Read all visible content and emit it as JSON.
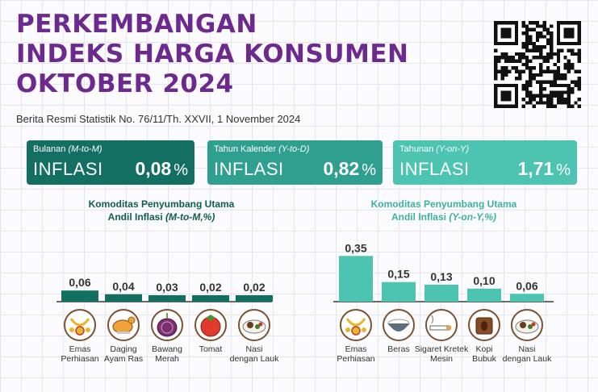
{
  "header": {
    "title_lines": [
      "PERKEMBANGAN",
      "INDEKS HARGA KONSUMEN",
      "OKTOBER 2024"
    ],
    "subtitle": "Berita Resmi Statistik No. 76/11/Th. XXVII, 1 November 2024"
  },
  "cards": [
    {
      "period_prefix": "Bulanan ",
      "period_italic": "(M-to-M)",
      "label": "INFLASI",
      "value": "0,08",
      "unit": "%"
    },
    {
      "period_prefix": "Tahun Kalender ",
      "period_italic": "(Y-to-D)",
      "label": "INFLASI",
      "value": "0,82",
      "unit": "%"
    },
    {
      "period_prefix": "Tahunan ",
      "period_italic": "(Y-on-Y)",
      "label": "INFLASI",
      "value": "1,71",
      "unit": "%"
    }
  ],
  "colors": {
    "purple": "#6c2a8e",
    "dark_teal": "#136f61",
    "mid_teal": "#2fa08f",
    "light_teal": "#4cc4b1"
  },
  "chart_data": [
    {
      "type": "bar",
      "title_line1": "Komoditas Penyumbang Utama",
      "title_line2_prefix": "Andil Inflasi ",
      "title_line2_italic": "(M-to-M,%)",
      "categories": [
        "Emas Perhiasan",
        "Daging Ayam Ras",
        "Bawang Merah",
        "Tomat",
        "Nasi dengan Lauk"
      ],
      "label_lines": [
        [
          "Emas",
          "Perhiasan"
        ],
        [
          "Daging",
          "Ayam Ras"
        ],
        [
          "Bawang",
          "Merah"
        ],
        [
          "Tomat"
        ],
        [
          "Nasi",
          "dengan Lauk"
        ]
      ],
      "icons": [
        "gold-jewelry-icon",
        "chicken-icon",
        "shallot-icon",
        "tomato-icon",
        "rice-dish-icon"
      ],
      "values": [
        0.06,
        0.04,
        0.03,
        0.02,
        0.02
      ],
      "value_labels": [
        "0,06",
        "0,04",
        "0,03",
        "0,02",
        "0,02"
      ],
      "color": "#136f61"
    },
    {
      "type": "bar",
      "title_line1": "Komoditas Penyumbang Utama",
      "title_line2_prefix": "Andil Inflasi ",
      "title_line2_italic": "(Y-on-Y,%)",
      "categories": [
        "Emas Perhiasan",
        "Beras",
        "Sigaret Kretek Mesin",
        "Kopi Bubuk",
        "Nasi dengan Lauk"
      ],
      "label_lines": [
        [
          "Emas",
          "Perhiasan"
        ],
        [
          "Beras"
        ],
        [
          "Sigaret Kretek",
          "Mesin"
        ],
        [
          "Kopi",
          "Bubuk"
        ],
        [
          "Nasi",
          "dengan Lauk"
        ]
      ],
      "icons": [
        "gold-jewelry-icon",
        "rice-bowl-icon",
        "cigarette-icon",
        "coffee-icon",
        "rice-dish-icon"
      ],
      "values": [
        0.35,
        0.15,
        0.13,
        0.1,
        0.06
      ],
      "value_labels": [
        "0,35",
        "0,15",
        "0,13",
        "0,10",
        "0,06"
      ],
      "color": "#4cc4b1"
    }
  ]
}
